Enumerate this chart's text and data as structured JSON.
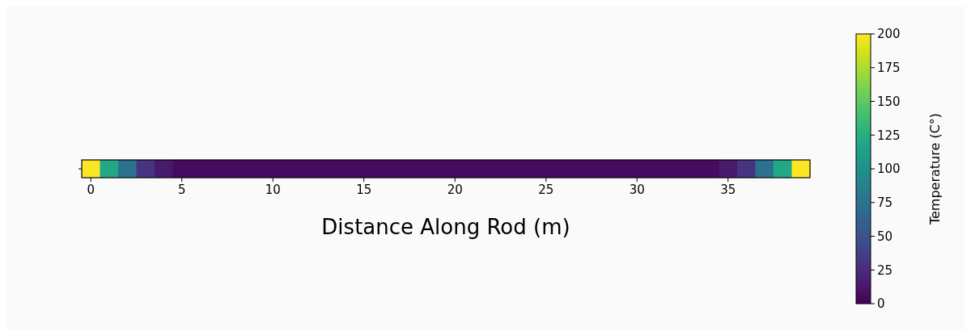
{
  "chart_data": {
    "type": "heatmap",
    "xlabel": "Distance Along Rod (m)",
    "clabel": "Temperature (C°)",
    "categories": [
      "0",
      null,
      null,
      null,
      null,
      "5",
      null,
      null,
      null,
      null,
      "10",
      null,
      null,
      null,
      null,
      "15",
      null,
      null,
      null,
      null,
      "20",
      null,
      null,
      null,
      null,
      "25",
      null,
      null,
      null,
      null,
      "30",
      null,
      null,
      null,
      null,
      "35",
      null,
      null,
      null,
      null
    ],
    "y_categories": [
      null
    ],
    "cells": [
      [
        200,
        120,
        75,
        30,
        14,
        6,
        6,
        6,
        6,
        6,
        6,
        6,
        6,
        6,
        6,
        6,
        6,
        6,
        6,
        6,
        6,
        6,
        6,
        6,
        6,
        6,
        6,
        6,
        6,
        6,
        6,
        6,
        6,
        6,
        6,
        14,
        30,
        75,
        120,
        200
      ]
    ],
    "clim": [
      0,
      200
    ],
    "cticks": [
      0,
      25,
      50,
      75,
      100,
      125,
      150,
      175,
      200
    ]
  }
}
